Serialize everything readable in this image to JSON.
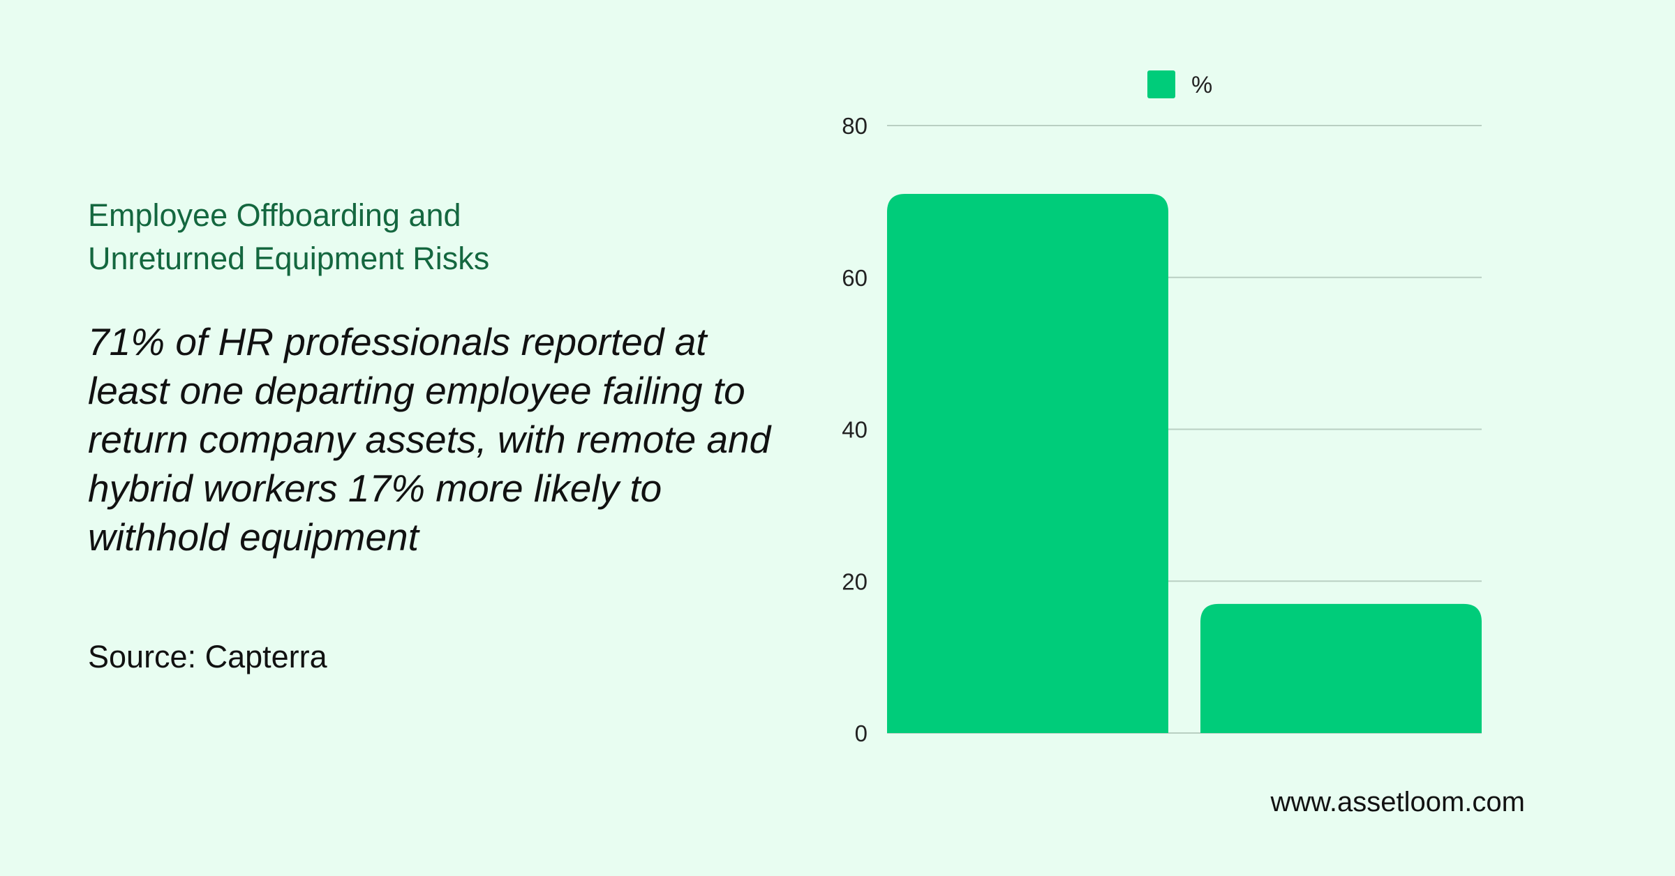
{
  "text": {
    "title_line1": "Employee Offboarding and",
    "title_line2": "Unreturned Equipment Risks",
    "body": "71% of HR professionals reported at least one departing employee failing to return company assets, with remote and hybrid workers 17% more likely to withhold equipment",
    "source": "Source: Capterra",
    "website": "www.assetloom.com"
  },
  "chart_data": {
    "type": "bar",
    "categories": [
      "",
      ""
    ],
    "series": [
      {
        "name": "%",
        "values": [
          71,
          17
        ],
        "color": "#00cc7a"
      }
    ],
    "ylim": [
      0,
      80
    ],
    "yticks": [
      "0",
      "20",
      "40",
      "60",
      "80"
    ],
    "grid": true,
    "legend": "top-center",
    "xlabel": "",
    "ylabel": ""
  },
  "colors": {
    "background": "#e8fdf1",
    "bar": "#00cc7a",
    "title": "#14673f",
    "grid": "#b9cfc2"
  }
}
